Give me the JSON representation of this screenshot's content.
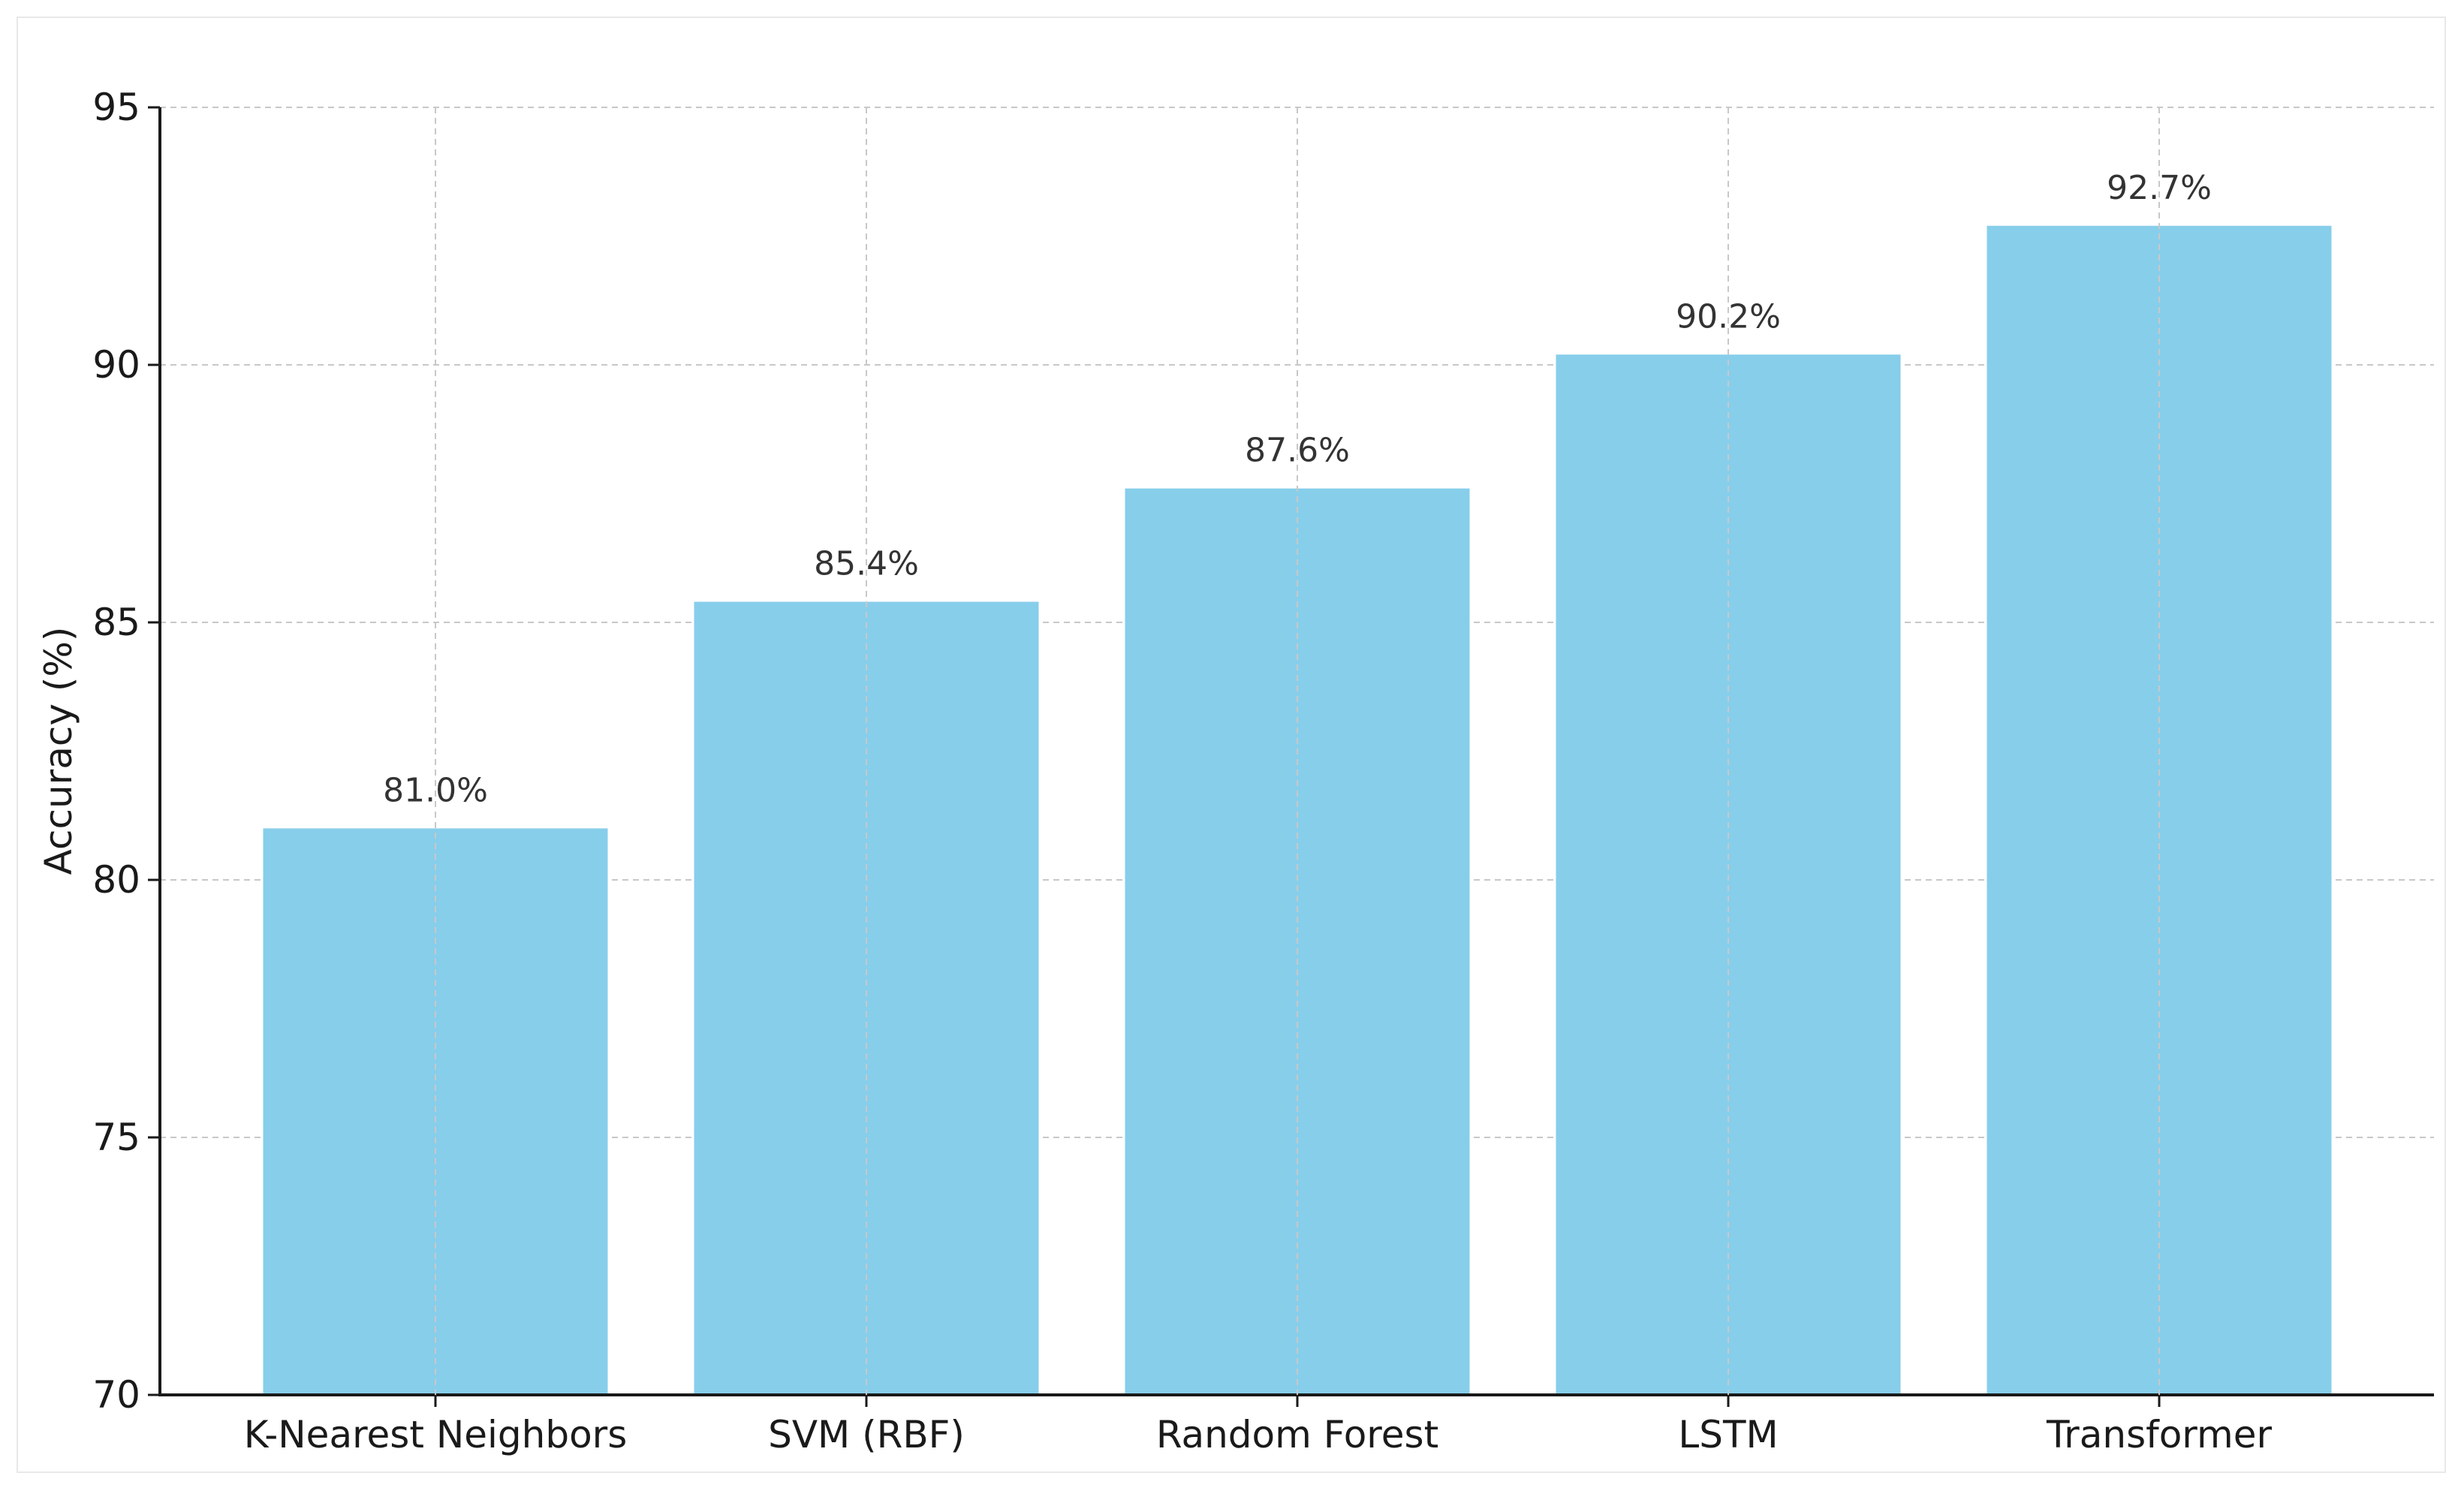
{
  "chart_data": {
    "type": "bar",
    "title": "",
    "xlabel": "",
    "ylabel": "Accuracy (%)",
    "categories": [
      "K-Nearest Neighbors",
      "SVM (RBF)",
      "Random Forest",
      "LSTM",
      "Transformer"
    ],
    "values": [
      81.0,
      85.4,
      87.6,
      90.2,
      92.7
    ],
    "value_labels": [
      "81.0%",
      "85.4%",
      "87.6%",
      "90.2%",
      "92.7%"
    ],
    "ylim": [
      70,
      95
    ],
    "yticks": [
      70,
      75,
      80,
      85,
      90,
      95
    ],
    "ytick_labels": [
      "70",
      "75",
      "80",
      "85",
      "90",
      "95"
    ],
    "grid": true,
    "bar_color": "#87CEEB",
    "grid_color": "#c8c8c8"
  }
}
